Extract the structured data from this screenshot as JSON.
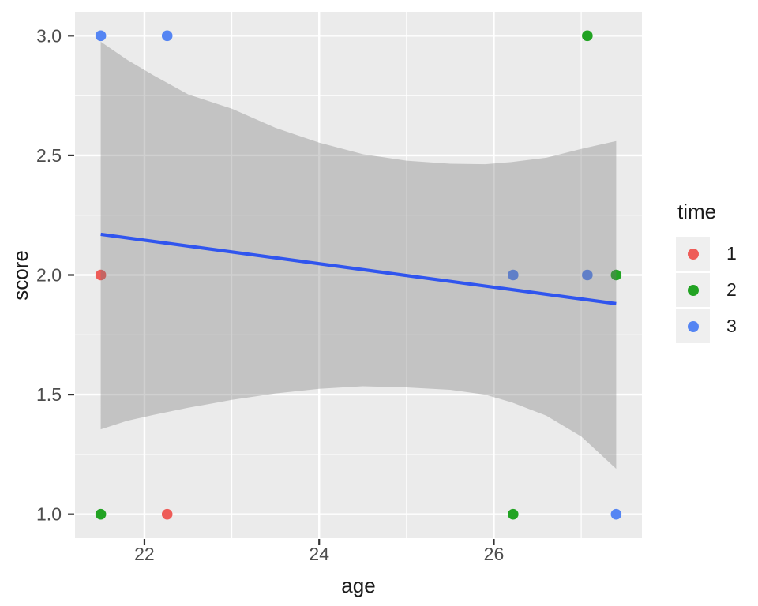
{
  "chart_data": {
    "type": "scatter",
    "title": "",
    "xlabel": "age",
    "ylabel": "score",
    "x_domain": [
      21.205,
      27.695
    ],
    "y_domain": [
      0.9,
      3.1
    ],
    "x_ticks": [
      22,
      24,
      26
    ],
    "x_tick_labels": [
      "22",
      "24",
      "26"
    ],
    "x_minor_ticks": [
      23,
      25,
      27
    ],
    "y_ticks": [
      1.0,
      1.5,
      2.0,
      2.5,
      3.0
    ],
    "y_tick_labels": [
      "1.0",
      "1.5",
      "2.0",
      "2.5",
      "3.0"
    ],
    "y_minor_ticks": [
      1.25,
      1.75,
      2.25,
      2.75
    ],
    "grid": true,
    "panel_bg": "#ebebeb",
    "grid_color": "#ffffff",
    "tick_color": "#333333",
    "axis_text_color": "#4d4d4d",
    "legend": {
      "title": "time",
      "position": "right",
      "entries": [
        {
          "label": "1",
          "color": "#ee5c58"
        },
        {
          "label": "2",
          "color": "#22a323"
        },
        {
          "label": "3",
          "color": "#5585f3"
        }
      ]
    },
    "series": [
      {
        "name": "1",
        "color": "#ee5c58",
        "points": [
          [
            21.5,
            2.0
          ],
          [
            22.26,
            1.0
          ]
        ]
      },
      {
        "name": "2",
        "color": "#22a323",
        "points": [
          [
            27.07,
            3.0
          ],
          [
            27.4,
            2.0
          ],
          [
            21.5,
            1.0
          ],
          [
            26.22,
            1.0
          ]
        ]
      },
      {
        "name": "3",
        "color": "#5585f3",
        "points": [
          [
            21.5,
            3.0
          ],
          [
            22.26,
            3.0
          ],
          [
            26.22,
            2.0
          ],
          [
            27.07,
            2.0
          ],
          [
            27.4,
            1.0
          ]
        ]
      }
    ],
    "regression_line": {
      "color": "#3055ee",
      "x": [
        21.5,
        27.4
      ],
      "y": [
        2.17,
        1.88
      ]
    },
    "confidence_band": {
      "fill": "#767676",
      "opacity": 0.34,
      "upper": [
        [
          21.5,
          2.975
        ],
        [
          21.8,
          2.9
        ],
        [
          22.1,
          2.835
        ],
        [
          22.5,
          2.755
        ],
        [
          23.0,
          2.695
        ],
        [
          23.5,
          2.615
        ],
        [
          24.0,
          2.553
        ],
        [
          24.5,
          2.505
        ],
        [
          25.0,
          2.478
        ],
        [
          25.5,
          2.465
        ],
        [
          25.9,
          2.463
        ],
        [
          26.2,
          2.472
        ],
        [
          26.6,
          2.49
        ],
        [
          27.0,
          2.527
        ],
        [
          27.4,
          2.56
        ]
      ],
      "lower": [
        [
          21.5,
          1.355
        ],
        [
          21.8,
          1.39
        ],
        [
          22.1,
          1.415
        ],
        [
          22.5,
          1.445
        ],
        [
          23.0,
          1.478
        ],
        [
          23.5,
          1.505
        ],
        [
          24.0,
          1.524
        ],
        [
          24.5,
          1.535
        ],
        [
          25.0,
          1.53
        ],
        [
          25.5,
          1.52
        ],
        [
          25.9,
          1.5
        ],
        [
          26.2,
          1.468
        ],
        [
          26.6,
          1.412
        ],
        [
          27.0,
          1.325
        ],
        [
          27.4,
          1.19
        ]
      ]
    }
  }
}
